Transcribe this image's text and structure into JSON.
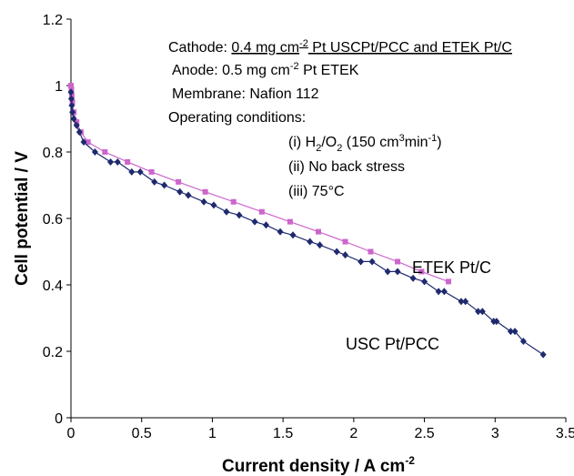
{
  "chart_data": {
    "type": "scatter",
    "xlabel_main": "Current density / A cm",
    "xlabel_sup": "-2",
    "ylabel": "Cell potential / V",
    "xlim": [
      0,
      3.5
    ],
    "ylim": [
      0,
      1.2
    ],
    "xticks": [
      "0",
      "0.5",
      "1",
      "1.5",
      "2",
      "2.5",
      "3",
      "3.5"
    ],
    "yticks": [
      "0",
      "0.2",
      "0.4",
      "0.6",
      "0.8",
      "1",
      "1.2"
    ],
    "grid": false,
    "annotation": {
      "cathode_prefix": "Cathode: ",
      "cathode_value": "0.4 mg cm",
      "cathode_sup": "-2",
      "cathode_rest": " Pt USCPt/PCC and ETEK Pt/C",
      "anode_main": "Anode: 0.5 mg cm",
      "anode_sup": "-2",
      "anode_rest": " Pt  ETEK",
      "membrane": "Membrane: Nafion 112",
      "operating": "Operating conditions:",
      "cond1_pre": "(i) H",
      "cond1_sub1": "2",
      "cond1_mid": "/O",
      "cond1_sub2": "2",
      "cond1_post": " (150 cm",
      "cond1_sup": "3",
      "cond1_post2": "min",
      "cond1_sup2": "-1",
      "cond1_end": ")",
      "cond2": "(ii) No back stress",
      "cond3": "(iii) 75°C"
    },
    "series": [
      {
        "name": "ETEK Pt/C",
        "color": "#cc66cc",
        "marker": "square",
        "x": [
          0.0,
          0.003,
          0.006,
          0.01,
          0.02,
          0.04,
          0.07,
          0.12,
          0.24,
          0.4,
          0.57,
          0.76,
          0.95,
          1.15,
          1.35,
          1.55,
          1.75,
          1.94,
          2.12,
          2.31,
          2.48,
          2.67
        ],
        "y": [
          1.0,
          0.99,
          0.97,
          0.95,
          0.92,
          0.89,
          0.86,
          0.83,
          0.8,
          0.77,
          0.74,
          0.71,
          0.68,
          0.65,
          0.62,
          0.59,
          0.56,
          0.53,
          0.5,
          0.47,
          0.44,
          0.41
        ]
      },
      {
        "name": "USC Pt/PCC",
        "color": "#1f2a6e",
        "marker": "diamond",
        "x": [
          0.0,
          0.003,
          0.006,
          0.01,
          0.02,
          0.04,
          0.06,
          0.09,
          0.17,
          0.28,
          0.33,
          0.43,
          0.49,
          0.59,
          0.66,
          0.77,
          0.83,
          0.94,
          1.01,
          1.1,
          1.19,
          1.3,
          1.38,
          1.48,
          1.57,
          1.69,
          1.76,
          1.88,
          1.94,
          2.05,
          2.13,
          2.24,
          2.31,
          2.42,
          2.5,
          2.6,
          2.64,
          2.76,
          2.79,
          2.88,
          2.91,
          2.99,
          3.01,
          3.11,
          3.14,
          3.2,
          3.34
        ],
        "y": [
          0.98,
          0.96,
          0.94,
          0.92,
          0.9,
          0.88,
          0.86,
          0.83,
          0.8,
          0.77,
          0.77,
          0.74,
          0.74,
          0.71,
          0.7,
          0.68,
          0.67,
          0.65,
          0.64,
          0.62,
          0.61,
          0.59,
          0.58,
          0.56,
          0.55,
          0.53,
          0.52,
          0.5,
          0.49,
          0.47,
          0.47,
          0.44,
          0.44,
          0.42,
          0.41,
          0.38,
          0.38,
          0.35,
          0.35,
          0.32,
          0.32,
          0.29,
          0.29,
          0.26,
          0.26,
          0.23,
          0.19
        ]
      }
    ]
  }
}
